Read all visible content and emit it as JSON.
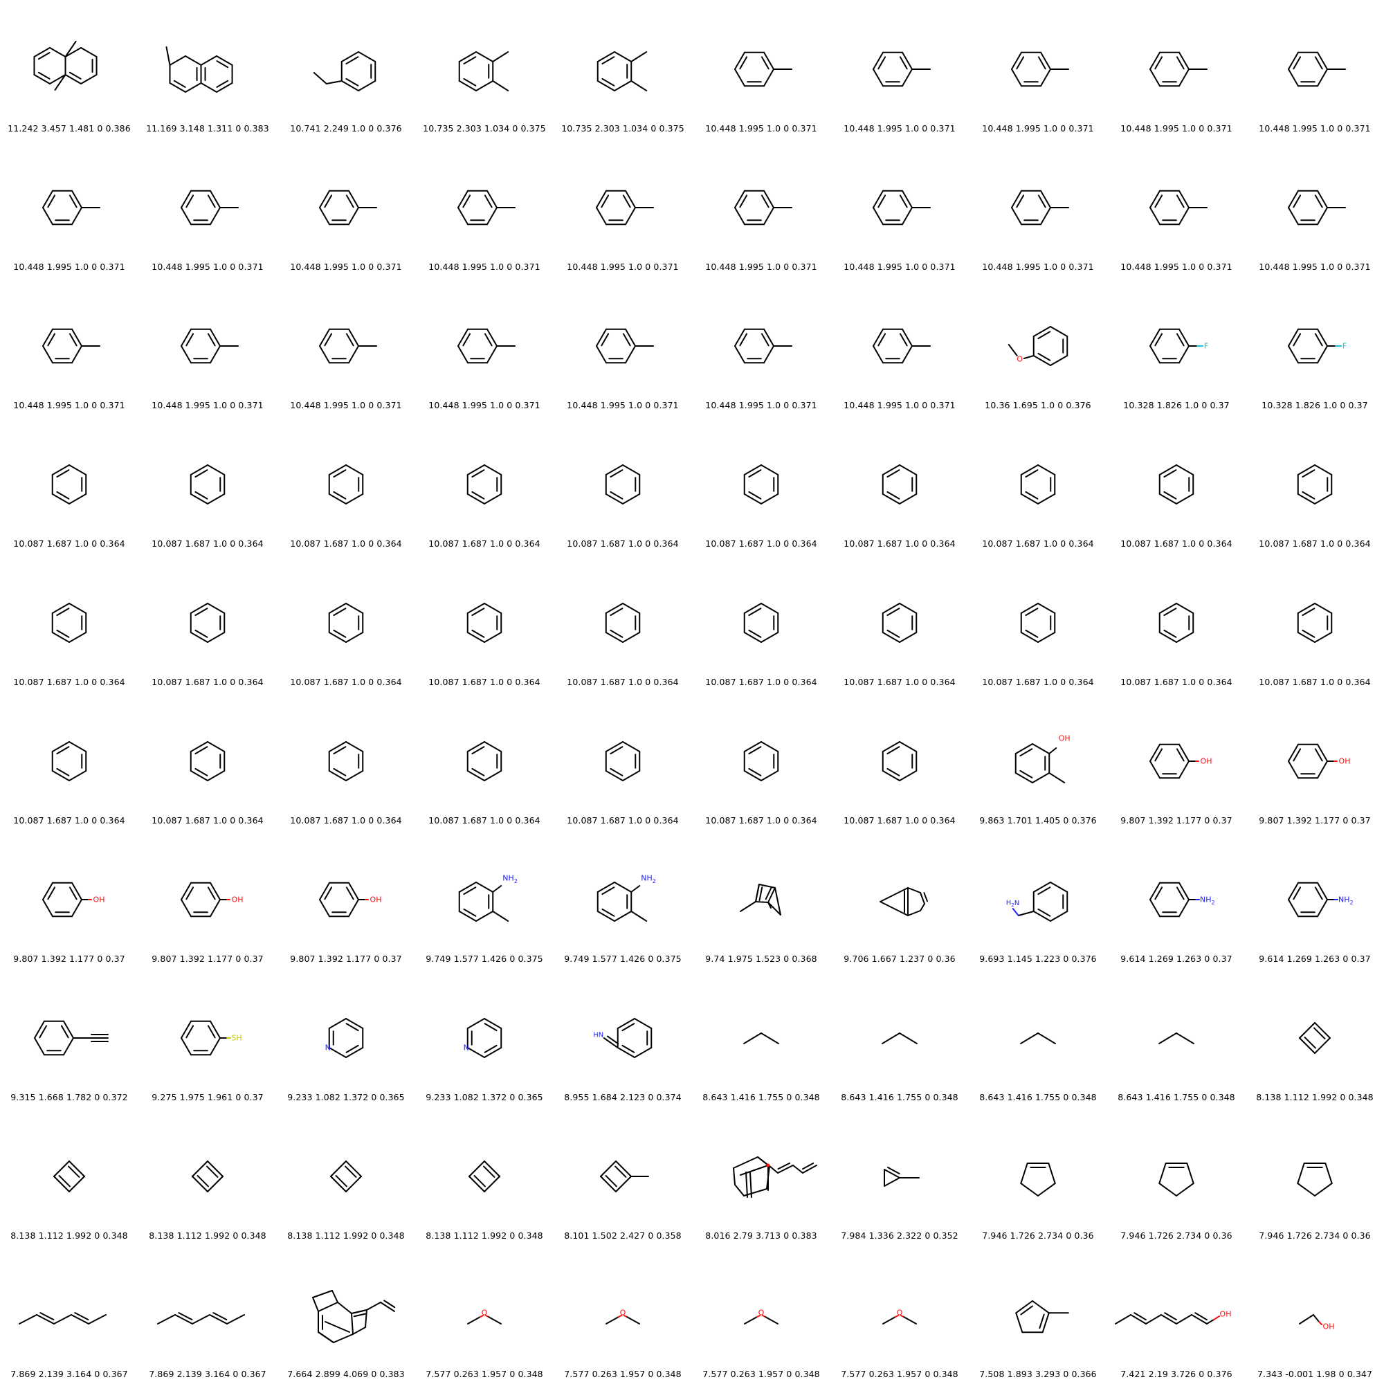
{
  "molecules": [
    {
      "mol": "dimethylnaphthalene-a",
      "caption": "11.242 3.457 1.481 0 0.386"
    },
    {
      "mol": "methylnaphthalene",
      "caption": "11.169 3.148 1.311 0 0.383"
    },
    {
      "mol": "ethylbenzene",
      "caption": "10.741 2.249 1.0 0 0.376"
    },
    {
      "mol": "o-xylene",
      "caption": "10.735 2.303 1.034 0 0.375"
    },
    {
      "mol": "o-xylene",
      "caption": "10.735 2.303 1.034 0 0.375"
    },
    {
      "mol": "toluene",
      "caption": "10.448 1.995 1.0 0 0.371"
    },
    {
      "mol": "toluene",
      "caption": "10.448 1.995 1.0 0 0.371"
    },
    {
      "mol": "toluene",
      "caption": "10.448 1.995 1.0 0 0.371"
    },
    {
      "mol": "toluene",
      "caption": "10.448 1.995 1.0 0 0.371"
    },
    {
      "mol": "toluene",
      "caption": "10.448 1.995 1.0 0 0.371"
    },
    {
      "mol": "toluene",
      "caption": "10.448 1.995 1.0 0 0.371"
    },
    {
      "mol": "toluene",
      "caption": "10.448 1.995 1.0 0 0.371"
    },
    {
      "mol": "toluene",
      "caption": "10.448 1.995 1.0 0 0.371"
    },
    {
      "mol": "toluene",
      "caption": "10.448 1.995 1.0 0 0.371"
    },
    {
      "mol": "toluene",
      "caption": "10.448 1.995 1.0 0 0.371"
    },
    {
      "mol": "toluene",
      "caption": "10.448 1.995 1.0 0 0.371"
    },
    {
      "mol": "toluene",
      "caption": "10.448 1.995 1.0 0 0.371"
    },
    {
      "mol": "toluene",
      "caption": "10.448 1.995 1.0 0 0.371"
    },
    {
      "mol": "toluene",
      "caption": "10.448 1.995 1.0 0 0.371"
    },
    {
      "mol": "toluene",
      "caption": "10.448 1.995 1.0 0 0.371"
    },
    {
      "mol": "toluene",
      "caption": "10.448 1.995 1.0 0 0.371"
    },
    {
      "mol": "toluene",
      "caption": "10.448 1.995 1.0 0 0.371"
    },
    {
      "mol": "toluene",
      "caption": "10.448 1.995 1.0 0 0.371"
    },
    {
      "mol": "toluene",
      "caption": "10.448 1.995 1.0 0 0.371"
    },
    {
      "mol": "toluene",
      "caption": "10.448 1.995 1.0 0 0.371"
    },
    {
      "mol": "toluene",
      "caption": "10.448 1.995 1.0 0 0.371"
    },
    {
      "mol": "toluene",
      "caption": "10.448 1.995 1.0 0 0.371"
    },
    {
      "mol": "anisole",
      "caption": "10.36 1.695 1.0 0 0.376"
    },
    {
      "mol": "fluorobenzene",
      "caption": "10.328 1.826 1.0 0 0.37"
    },
    {
      "mol": "fluorobenzene",
      "caption": "10.328 1.826 1.0 0 0.37"
    },
    {
      "mol": "benzene",
      "caption": "10.087 1.687 1.0 0 0.364"
    },
    {
      "mol": "benzene",
      "caption": "10.087 1.687 1.0 0 0.364"
    },
    {
      "mol": "benzene",
      "caption": "10.087 1.687 1.0 0 0.364"
    },
    {
      "mol": "benzene",
      "caption": "10.087 1.687 1.0 0 0.364"
    },
    {
      "mol": "benzene",
      "caption": "10.087 1.687 1.0 0 0.364"
    },
    {
      "mol": "benzene",
      "caption": "10.087 1.687 1.0 0 0.364"
    },
    {
      "mol": "benzene",
      "caption": "10.087 1.687 1.0 0 0.364"
    },
    {
      "mol": "benzene",
      "caption": "10.087 1.687 1.0 0 0.364"
    },
    {
      "mol": "benzene",
      "caption": "10.087 1.687 1.0 0 0.364"
    },
    {
      "mol": "benzene",
      "caption": "10.087 1.687 1.0 0 0.364"
    },
    {
      "mol": "benzene",
      "caption": "10.087 1.687 1.0 0 0.364"
    },
    {
      "mol": "benzene",
      "caption": "10.087 1.687 1.0 0 0.364"
    },
    {
      "mol": "benzene",
      "caption": "10.087 1.687 1.0 0 0.364"
    },
    {
      "mol": "benzene",
      "caption": "10.087 1.687 1.0 0 0.364"
    },
    {
      "mol": "benzene",
      "caption": "10.087 1.687 1.0 0 0.364"
    },
    {
      "mol": "benzene",
      "caption": "10.087 1.687 1.0 0 0.364"
    },
    {
      "mol": "benzene",
      "caption": "10.087 1.687 1.0 0 0.364"
    },
    {
      "mol": "benzene",
      "caption": "10.087 1.687 1.0 0 0.364"
    },
    {
      "mol": "benzene",
      "caption": "10.087 1.687 1.0 0 0.364"
    },
    {
      "mol": "benzene",
      "caption": "10.087 1.687 1.0 0 0.364"
    },
    {
      "mol": "benzene",
      "caption": "10.087 1.687 1.0 0 0.364"
    },
    {
      "mol": "benzene",
      "caption": "10.087 1.687 1.0 0 0.364"
    },
    {
      "mol": "benzene",
      "caption": "10.087 1.687 1.0 0 0.364"
    },
    {
      "mol": "benzene",
      "caption": "10.087 1.687 1.0 0 0.364"
    },
    {
      "mol": "benzene",
      "caption": "10.087 1.687 1.0 0 0.364"
    },
    {
      "mol": "benzene",
      "caption": "10.087 1.687 1.0 0 0.364"
    },
    {
      "mol": "benzene",
      "caption": "10.087 1.687 1.0 0 0.364"
    },
    {
      "mol": "o-cresol",
      "caption": "9.863 1.701 1.405 0 0.376"
    },
    {
      "mol": "phenol",
      "caption": "9.807 1.392 1.177 0 0.37"
    },
    {
      "mol": "phenol",
      "caption": "9.807 1.392 1.177 0 0.37"
    },
    {
      "mol": "phenol",
      "caption": "9.807 1.392 1.177 0 0.37"
    },
    {
      "mol": "phenol",
      "caption": "9.807 1.392 1.177 0 0.37"
    },
    {
      "mol": "phenol",
      "caption": "9.807 1.392 1.177 0 0.37"
    },
    {
      "mol": "o-toluidine",
      "caption": "9.749 1.577 1.426 0 0.375"
    },
    {
      "mol": "o-toluidine",
      "caption": "9.749 1.577 1.426 0 0.375"
    },
    {
      "mol": "methyl-bicyclic",
      "caption": "9.74 1.975 1.523 0 0.368"
    },
    {
      "mol": "bicyclic",
      "caption": "9.706 1.667 1.237 0 0.36"
    },
    {
      "mol": "benzylamine",
      "caption": "9.693 1.145 1.223 0 0.376"
    },
    {
      "mol": "aniline",
      "caption": "9.614 1.269 1.263 0 0.37"
    },
    {
      "mol": "aniline",
      "caption": "9.614 1.269 1.263 0 0.37"
    },
    {
      "mol": "phenylacetylene",
      "caption": "9.315 1.668 1.782 0 0.372"
    },
    {
      "mol": "thiophenol",
      "caption": "9.275 1.975 1.961 0 0.37"
    },
    {
      "mol": "pyridine",
      "caption": "9.233 1.082 1.372 0 0.365"
    },
    {
      "mol": "pyridine",
      "caption": "9.233 1.082 1.372 0 0.365"
    },
    {
      "mol": "benzaldimine",
      "caption": "8.955 1.684 2.123 0 0.374"
    },
    {
      "mol": "propane",
      "caption": "8.643 1.416 1.755 0 0.348"
    },
    {
      "mol": "propane",
      "caption": "8.643 1.416 1.755 0 0.348"
    },
    {
      "mol": "propane",
      "caption": "8.643 1.416 1.755 0 0.348"
    },
    {
      "mol": "propane",
      "caption": "8.643 1.416 1.755 0 0.348"
    },
    {
      "mol": "cyclobutadiene",
      "caption": "8.138 1.112 1.992 0 0.348"
    },
    {
      "mol": "cyclobutadiene",
      "caption": "8.138 1.112 1.992 0 0.348"
    },
    {
      "mol": "cyclobutadiene",
      "caption": "8.138 1.112 1.992 0 0.348"
    },
    {
      "mol": "cyclobutadiene",
      "caption": "8.138 1.112 1.992 0 0.348"
    },
    {
      "mol": "cyclobutadiene",
      "caption": "8.138 1.112 1.992 0 0.348"
    },
    {
      "mol": "methylcyclobutadiene",
      "caption": "8.101 1.502 2.427 0 0.358"
    },
    {
      "mol": "cage-diene",
      "caption": "8.016 2.79 3.713 0 0.383"
    },
    {
      "mol": "methylcyclopropene",
      "caption": "7.984 1.336 2.322 0 0.352"
    },
    {
      "mol": "cyclopentene",
      "caption": "7.946 1.726 2.734 0 0.36"
    },
    {
      "mol": "cyclopentene",
      "caption": "7.946 1.726 2.734 0 0.36"
    },
    {
      "mol": "cyclopentene",
      "caption": "7.946 1.726 2.734 0 0.36"
    },
    {
      "mol": "hexadiene",
      "caption": "7.869 2.139 3.164 0 0.367"
    },
    {
      "mol": "hexadiene",
      "caption": "7.869 2.139 3.164 0 0.367"
    },
    {
      "mol": "vinyl-bicyclic",
      "caption": "7.664 2.899 4.069 0 0.383"
    },
    {
      "mol": "dimethyl-ether",
      "caption": "7.577 0.263 1.957 0 0.348"
    },
    {
      "mol": "dimethyl-ether",
      "caption": "7.577 0.263 1.957 0 0.348"
    },
    {
      "mol": "dimethyl-ether",
      "caption": "7.577 0.263 1.957 0 0.348"
    },
    {
      "mol": "dimethyl-ether",
      "caption": "7.577 0.263 1.957 0 0.348"
    },
    {
      "mol": "methylcyclopentadiene",
      "caption": "7.508 1.893 3.293 0 0.366"
    },
    {
      "mol": "heptatrienol",
      "caption": "7.421 2.19 3.726 0 0.376"
    },
    {
      "mol": "ethanol",
      "caption": "7.343 -0.001 1.98 0 0.347"
    }
  ],
  "atom_labels": {
    "oxygen": "O",
    "fluorine": "F",
    "hydroxyl": "OH",
    "amine": "NH",
    "amine_sub": "2",
    "amine_prefix": "H",
    "amine_prefix_n": "N",
    "nitrogen": "N",
    "imine": "HN",
    "thiol": "SH"
  },
  "colors": {
    "bond": "#000000",
    "oxygen": "#ff0d0d",
    "nitrogen": "#2020ff",
    "fluorine": "#1fbfd8",
    "sulfur": "#c8c800"
  }
}
